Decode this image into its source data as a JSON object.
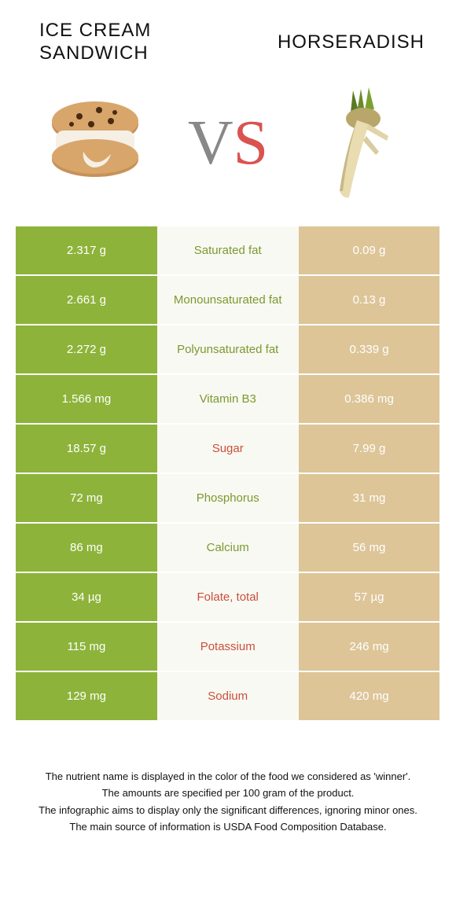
{
  "header": {
    "left_line1": "Ice Cream",
    "left_line2": "Sandwich",
    "right": "Horseradish"
  },
  "vs": {
    "v": "V",
    "s": "S"
  },
  "colors": {
    "green": "#8db33a",
    "tan": "#ddc598",
    "row_mid_bg": "#f9f9f3",
    "label_green": "#7a9a2e",
    "label_red": "#c94f3a",
    "vs_gray": "#888888",
    "vs_red": "#d9534f"
  },
  "rows": [
    {
      "nutrient": "Saturated fat",
      "left": "2.317 g",
      "right": "0.09 g",
      "winner": "left"
    },
    {
      "nutrient": "Monounsaturated fat",
      "left": "2.661 g",
      "right": "0.13 g",
      "winner": "left"
    },
    {
      "nutrient": "Polyunsaturated fat",
      "left": "2.272 g",
      "right": "0.339 g",
      "winner": "left"
    },
    {
      "nutrient": "Vitamin B3",
      "left": "1.566 mg",
      "right": "0.386 mg",
      "winner": "left"
    },
    {
      "nutrient": "Sugar",
      "left": "18.57 g",
      "right": "7.99 g",
      "winner": "right"
    },
    {
      "nutrient": "Phosphorus",
      "left": "72 mg",
      "right": "31 mg",
      "winner": "left"
    },
    {
      "nutrient": "Calcium",
      "left": "86 mg",
      "right": "56 mg",
      "winner": "left"
    },
    {
      "nutrient": "Folate, total",
      "left": "34 µg",
      "right": "57 µg",
      "winner": "right"
    },
    {
      "nutrient": "Potassium",
      "left": "115 mg",
      "right": "246 mg",
      "winner": "right"
    },
    {
      "nutrient": "Sodium",
      "left": "129 mg",
      "right": "420 mg",
      "winner": "right"
    }
  ],
  "footer": [
    "The nutrient name is displayed in the color of the food we considered as 'winner'.",
    "The amounts are specified per 100 gram of the product.",
    "The infographic aims to display only the significant differences, ignoring minor ones.",
    "The main source of information is USDA Food Composition Database."
  ]
}
